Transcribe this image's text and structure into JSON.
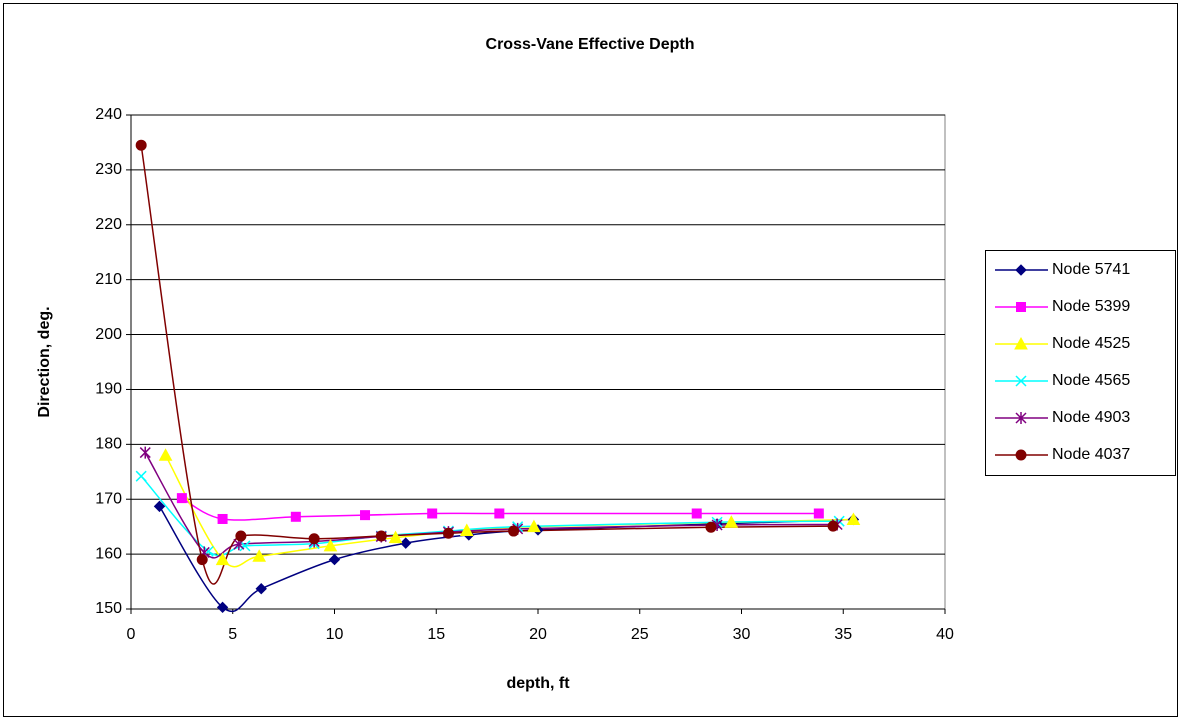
{
  "chart_data": {
    "type": "scatter",
    "title": "Cross-Vane Effective Depth",
    "x_label": "depth, ft",
    "y_label": "Direction, deg.",
    "xlim": [
      0,
      40
    ],
    "xticks": [
      0,
      5,
      10,
      15,
      20,
      25,
      30,
      35,
      40
    ],
    "ylim": [
      150,
      240
    ],
    "yticks": [
      150,
      160,
      170,
      180,
      190,
      200,
      210,
      220,
      230,
      240
    ],
    "grid": true,
    "smooth": true,
    "legend": "right",
    "series": [
      {
        "name": "Node 5741",
        "color": "#000080",
        "marker": "diamond",
        "x": [
          1.4,
          4.5,
          6.4,
          10,
          13.5,
          16.6,
          20,
          28.8,
          35.5
        ],
        "values": [
          168.7,
          150.3,
          153.7,
          159,
          162,
          163.5,
          164.4,
          165.5,
          166.3
        ]
      },
      {
        "name": "Node 5399",
        "color": "#ff00ff",
        "marker": "square",
        "x": [
          2.5,
          4.5,
          8.1,
          11.5,
          14.8,
          18.1,
          27.8,
          33.8
        ],
        "values": [
          170.2,
          166.4,
          166.8,
          167.1,
          167.4,
          167.4,
          167.4,
          167.4
        ]
      },
      {
        "name": "Node 4525",
        "color": "#ffff00",
        "marker": "triangle",
        "x": [
          1.7,
          4.5,
          6.3,
          9.8,
          13,
          16.5,
          19.8,
          29.5,
          35.5
        ],
        "values": [
          178,
          159,
          159.6,
          161.5,
          163,
          164.3,
          165,
          165.8,
          166.3
        ]
      },
      {
        "name": "Node 4565",
        "color": "#00ffff",
        "marker": "x",
        "x": [
          0.5,
          3.8,
          5.6,
          9,
          12.3,
          15.6,
          19,
          28.8,
          34.8
        ],
        "values": [
          174.2,
          160.5,
          161.5,
          161.9,
          163.3,
          164.2,
          165,
          165.8,
          166
        ]
      },
      {
        "name": "Node 4903",
        "color": "#800080",
        "marker": "star",
        "x": [
          0.7,
          3.6,
          5.3,
          9,
          12.3,
          15.6,
          19,
          28.8,
          34.7
        ],
        "values": [
          178.5,
          160.3,
          161.8,
          162.3,
          163.2,
          164,
          164.6,
          165.3,
          165.4
        ]
      },
      {
        "name": "Node 4037",
        "color": "#800000",
        "marker": "circle",
        "x": [
          0.5,
          3.5,
          5.4,
          9,
          12.3,
          15.6,
          18.8,
          28.5,
          34.5
        ],
        "values": [
          234.5,
          159,
          163.3,
          162.8,
          163.3,
          163.8,
          164.2,
          164.9,
          165.1
        ]
      }
    ]
  }
}
